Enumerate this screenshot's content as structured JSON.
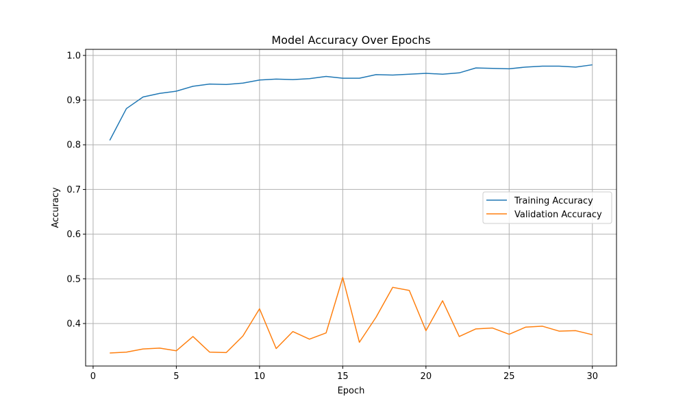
{
  "chart_data": {
    "type": "line",
    "title": "Model Accuracy Over Epochs",
    "xlabel": "Epoch",
    "ylabel": "Accuracy",
    "xlim": [
      -0.45,
      31.45
    ],
    "ylim": [
      0.3049,
      1.0136
    ],
    "xticks": [
      0,
      5,
      10,
      15,
      20,
      25,
      30
    ],
    "yticks": [
      0.4,
      0.5,
      0.6,
      0.7,
      0.8,
      0.9,
      1.0
    ],
    "xtick_labels": [
      "0",
      "5",
      "10",
      "15",
      "20",
      "25",
      "30"
    ],
    "ytick_labels": [
      "0.4",
      "0.5",
      "0.6",
      "0.7",
      "0.8",
      "0.9",
      "1.0"
    ],
    "grid": true,
    "legend_position": "center-right",
    "x": [
      1,
      2,
      3,
      4,
      5,
      6,
      7,
      8,
      9,
      10,
      11,
      12,
      13,
      14,
      15,
      16,
      17,
      18,
      19,
      20,
      21,
      22,
      23,
      24,
      25,
      26,
      27,
      28,
      29,
      30
    ],
    "series": [
      {
        "name": "Training Accuracy",
        "color": "#1f77b4",
        "values": [
          0.81,
          0.881,
          0.907,
          0.915,
          0.92,
          0.931,
          0.936,
          0.935,
          0.938,
          0.945,
          0.947,
          0.946,
          0.948,
          0.953,
          0.949,
          0.949,
          0.957,
          0.956,
          0.958,
          0.96,
          0.958,
          0.961,
          0.972,
          0.971,
          0.97,
          0.974,
          0.976,
          0.976,
          0.974,
          0.979
        ]
      },
      {
        "name": "Validation Accuracy",
        "color": "#ff7f0e",
        "values": [
          0.334,
          0.336,
          0.343,
          0.345,
          0.339,
          0.371,
          0.336,
          0.335,
          0.372,
          0.433,
          0.344,
          0.382,
          0.365,
          0.379,
          0.503,
          0.358,
          0.414,
          0.481,
          0.474,
          0.384,
          0.451,
          0.371,
          0.388,
          0.39,
          0.376,
          0.392,
          0.394,
          0.383,
          0.384,
          0.375
        ]
      }
    ]
  }
}
